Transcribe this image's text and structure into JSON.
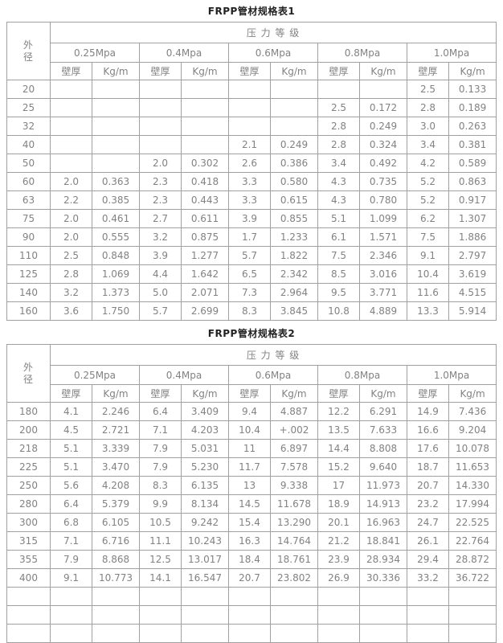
{
  "colors": {
    "border": "#a0a0a0",
    "text": "#828282",
    "title": "#222222"
  },
  "table1": {
    "title": "FRPP管材规格表1",
    "header": {
      "outer_diameter": "外径",
      "pressure_grade": "压 力 等 级",
      "pressure_levels": [
        "0.25Mpa",
        "0.4Mpa",
        "0.6Mpa",
        "0.8Mpa",
        "1.0Mpa"
      ],
      "wall_thickness": "壁厚",
      "kg_per_m": "Kg/m"
    },
    "rows": [
      {
        "od": "20",
        "cells": [
          "",
          "",
          "",
          "",
          "",
          "",
          "",
          "",
          "2.5",
          "0.133"
        ]
      },
      {
        "od": "25",
        "cells": [
          "",
          "",
          "",
          "",
          "",
          "",
          "2.5",
          "0.172",
          "2.8",
          "0.189"
        ]
      },
      {
        "od": "32",
        "cells": [
          "",
          "",
          "",
          "",
          "",
          "",
          "2.8",
          "0.249",
          "3.0",
          "0.263"
        ]
      },
      {
        "od": "40",
        "cells": [
          "",
          "",
          "",
          "",
          "2.1",
          "0.249",
          "2.8",
          "0.324",
          "3.4",
          "0.381"
        ]
      },
      {
        "od": "50",
        "cells": [
          "",
          "",
          "2.0",
          "0.302",
          "2.6",
          "0.386",
          "3.4",
          "0.492",
          "4.2",
          "0.589"
        ]
      },
      {
        "od": "60",
        "cells": [
          "2.0",
          "0.363",
          "2.3",
          "0.418",
          "3.3",
          "0.580",
          "4.3",
          "0.735",
          "5.2",
          "0.863"
        ]
      },
      {
        "od": "63",
        "cells": [
          "2.2",
          "0.385",
          "2.3",
          "0.443",
          "3.3",
          "0.615",
          "4.3",
          "0.780",
          "5.2",
          "0.917"
        ]
      },
      {
        "od": "75",
        "cells": [
          "2.0",
          "0.461",
          "2.7",
          "0.611",
          "3.9",
          "0.855",
          "5.1",
          "1.099",
          "6.2",
          "1.307"
        ]
      },
      {
        "od": "90",
        "cells": [
          "2.0",
          "0.555",
          "3.2",
          "0.875",
          "1.7",
          "1.233",
          "6.1",
          "1.571",
          "7.5",
          "1.886"
        ]
      },
      {
        "od": "110",
        "cells": [
          "2.5",
          "0.848",
          "3.9",
          "1.277",
          "5.7",
          "1.822",
          "7.5",
          "2.346",
          "9.1",
          "2.797"
        ]
      },
      {
        "od": "125",
        "cells": [
          "2.8",
          "1.069",
          "4.4",
          "1.642",
          "6.5",
          "2.342",
          "8.5",
          "3.016",
          "10.4",
          "3.619"
        ]
      },
      {
        "od": "140",
        "cells": [
          "3.2",
          "1.373",
          "5.0",
          "2.071",
          "7.3",
          "2.964",
          "9.5",
          "3.771",
          "11.6",
          "4.515"
        ]
      },
      {
        "od": "160",
        "cells": [
          "3.6",
          "1.750",
          "5.7",
          "2.699",
          "8.3",
          "3.845",
          "10.8",
          "4.889",
          "13.3",
          "5.914"
        ]
      }
    ]
  },
  "table2": {
    "title": "FRPP管材规格表2",
    "header": {
      "outer_diameter": "外径",
      "pressure_grade": "压 力 等 级",
      "pressure_levels": [
        "0.25Mpa",
        "0.4Mpa",
        "0.6Mpa",
        "0.8Mpa",
        "1.0Mpa"
      ],
      "wall_thickness": "壁厚",
      "kg_per_m": "Kg/m"
    },
    "rows": [
      {
        "od": "180",
        "cells": [
          "4.1",
          "2.246",
          "6.4",
          "3.409",
          "9.4",
          "4.887",
          "12.2",
          "6.291",
          "14.9",
          "7.436"
        ]
      },
      {
        "od": "200",
        "cells": [
          "4.5",
          "2.721",
          "7.1",
          "4.203",
          "10.4",
          "+.002",
          "13.5",
          "7.633",
          "16.6",
          "9.204"
        ]
      },
      {
        "od": "218",
        "cells": [
          "5.1",
          "3.339",
          "7.9",
          "5.031",
          "11",
          "6.897",
          "14.4",
          "8.808",
          "17.6",
          "10.078"
        ]
      },
      {
        "od": "225",
        "cells": [
          "5.1",
          "3.470",
          "7.9",
          "5.230",
          "11.7",
          "7.578",
          "15.2",
          "9.640",
          "18.7",
          "11.653"
        ]
      },
      {
        "od": "250",
        "cells": [
          "5.6",
          "4.208",
          "8.3",
          "6.135",
          "13",
          "9.338",
          "17",
          "11.973",
          "20.7",
          "14.330"
        ]
      },
      {
        "od": "280",
        "cells": [
          "6.4",
          "5.379",
          "9.9",
          "8.134",
          "14.5",
          "11.678",
          "18.9",
          "14.913",
          "23.2",
          "17.994"
        ]
      },
      {
        "od": "300",
        "cells": [
          "6.8",
          "6.105",
          "10.5",
          "9.242",
          "15.4",
          "13.290",
          "20.1",
          "16.963",
          "24.7",
          "22.525"
        ]
      },
      {
        "od": "315",
        "cells": [
          "7.1",
          "6.716",
          "11.1",
          "10.243",
          "16.3",
          "14.764",
          "21.2",
          "18.841",
          "26.1",
          "22.764"
        ]
      },
      {
        "od": "355",
        "cells": [
          "7.9",
          "8.868",
          "12.5",
          "13.017",
          "18.4",
          "18.761",
          "23.9",
          "28.934",
          "29.4",
          "28.872"
        ]
      },
      {
        "od": "400",
        "cells": [
          "9.1",
          "10.773",
          "14.1",
          "16.547",
          "20.7",
          "23.802",
          "26.9",
          "30.336",
          "33.2",
          "36.722"
        ]
      },
      {
        "od": "",
        "cells": [
          "",
          "",
          "",
          "",
          "",
          "",
          "",
          "",
          "",
          ""
        ]
      },
      {
        "od": "",
        "cells": [
          "",
          "",
          "",
          "",
          "",
          "",
          "",
          "",
          "",
          ""
        ]
      },
      {
        "od": "",
        "cells": [
          "",
          "",
          "",
          "",
          "",
          "",
          "",
          "",
          "",
          ""
        ]
      }
    ]
  }
}
